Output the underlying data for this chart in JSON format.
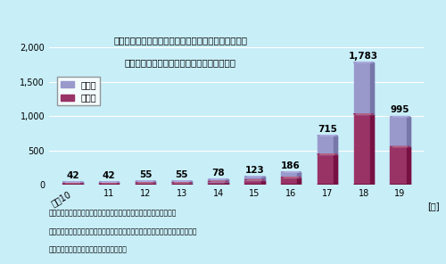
{
  "years": [
    "平成10",
    "11",
    "12",
    "13",
    "14",
    "15",
    "16",
    "17",
    "18",
    "19"
  ],
  "lung_cancer": [
    18,
    18,
    22,
    22,
    30,
    50,
    80,
    270,
    750,
    440
  ],
  "mesothelioma": [
    24,
    24,
    33,
    33,
    48,
    73,
    106,
    445,
    1033,
    555
  ],
  "totals": [
    42,
    42,
    55,
    55,
    78,
    123,
    186,
    715,
    1783,
    995
  ],
  "title_line1": "囵５　「労働者災害補償保険法」に基づく石綵による",
  "title_line2": "肺がんおよび中皮腮の労災保険給付決定状況",
  "legend_lung": "肺がん",
  "legend_meso": "中皮腮",
  "y_unit": "[年]",
  "note1": "（注１）決定件数は当該年度に請求されたものに限るものではない。",
  "note2": "（注２）「石綵による健康被害の救済に関する法律」に基づくものを含まない。",
  "note3": "資料出所　厉生労働省臓患病認定対策室調",
  "bg_color": "#c8eef8",
  "bar_lung_color": "#9999cc",
  "bar_meso_color": "#993366",
  "bar_lung_dark": "#7777aa",
  "bar_meso_dark": "#771144",
  "ylim": [
    0,
    2000
  ],
  "yticks": [
    0,
    500,
    1000,
    1500,
    2000
  ],
  "ytick_labels": [
    "0",
    "500",
    "1,000",
    "1,500",
    "2,000"
  ]
}
